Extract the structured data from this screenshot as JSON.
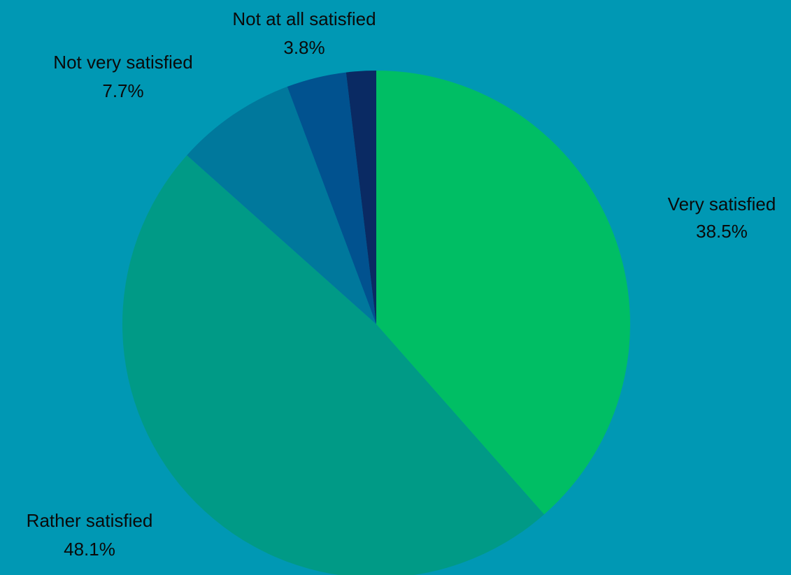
{
  "chart_data": {
    "type": "pie",
    "start_angle_deg": 0,
    "direction": "clockwise",
    "slices": [
      {
        "label": "Very satisfied",
        "value": 38.5,
        "value_label": "38.5%",
        "color": "#00be64"
      },
      {
        "label": "Rather satisfied",
        "value": 48.1,
        "value_label": "48.1%",
        "color": "#009a86"
      },
      {
        "label": "Not very satisfied",
        "value": 7.7,
        "value_label": "7.7%",
        "color": "#00789c"
      },
      {
        "label": "Not at all satisfied",
        "value": 3.8,
        "value_label": "3.8%",
        "color": "#01528f"
      },
      {
        "label": "",
        "value": 1.9,
        "value_label": "",
        "color": "#0a2a63"
      }
    ],
    "background_color": "#0098b4"
  }
}
